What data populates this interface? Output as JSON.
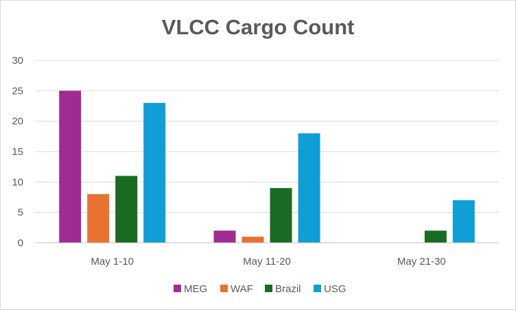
{
  "chart_data": {
    "type": "bar",
    "title": "VLCC Cargo Count",
    "xlabel": "",
    "ylabel": "",
    "categories": [
      "May 1-10",
      "May 11-20",
      "May 21-30"
    ],
    "series": [
      {
        "name": "MEG",
        "color": "#a02b93",
        "values": [
          25,
          2,
          0
        ]
      },
      {
        "name": "WAF",
        "color": "#e97132",
        "values": [
          8,
          1,
          0
        ]
      },
      {
        "name": "Brazil",
        "color": "#196b24",
        "values": [
          11,
          9,
          2
        ]
      },
      {
        "name": "USG",
        "color": "#0f9ed5",
        "values": [
          23,
          18,
          7
        ]
      }
    ],
    "ylim": [
      0,
      30
    ],
    "yticks": [
      "0",
      "5",
      "10",
      "15",
      "20",
      "25",
      "30"
    ],
    "grid": true,
    "legend_position": "bottom"
  }
}
